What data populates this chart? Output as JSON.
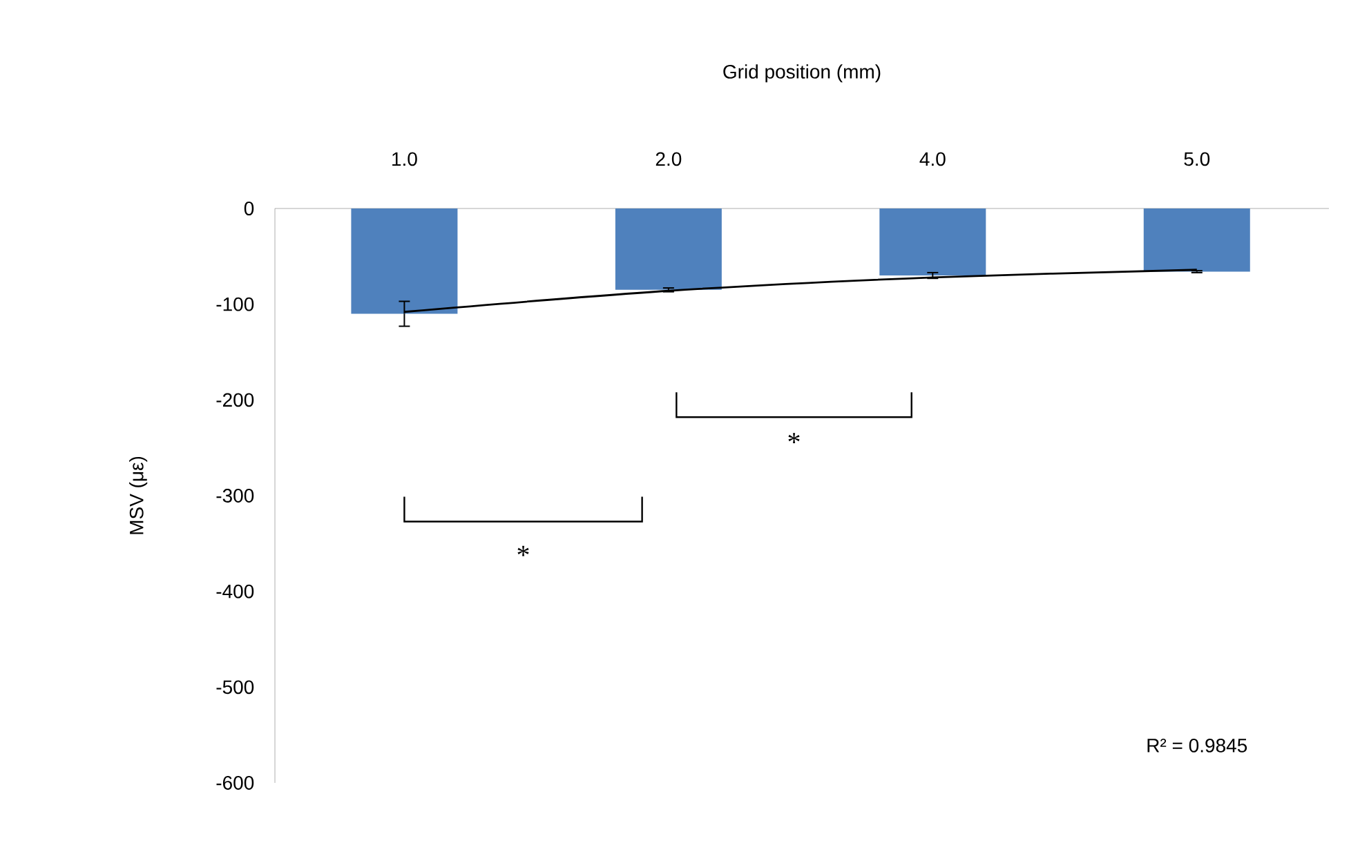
{
  "chart_data": {
    "type": "bar",
    "xlabel": "Grid position (mm)",
    "ylabel": "MSV (με)",
    "categories": [
      "1.0",
      "2.0",
      "4.0",
      "5.0"
    ],
    "series": [
      {
        "color": "#4f81bd",
        "values": [
          -110,
          -85,
          -70,
          -66
        ],
        "errors": [
          13,
          2,
          3,
          1
        ]
      },
      {
        "type": "line",
        "color": "#000000",
        "values": [
          -108,
          -86,
          -72,
          -64
        ],
        "marker": "none",
        "line_style": "solid"
      }
    ],
    "ylim": [
      -600,
      0
    ],
    "yticks": [
      -600,
      -500,
      -400,
      -300,
      -200,
      -100,
      0
    ],
    "grid": false,
    "annotations": [
      "*",
      "*",
      "R² = 0.9845"
    ]
  }
}
